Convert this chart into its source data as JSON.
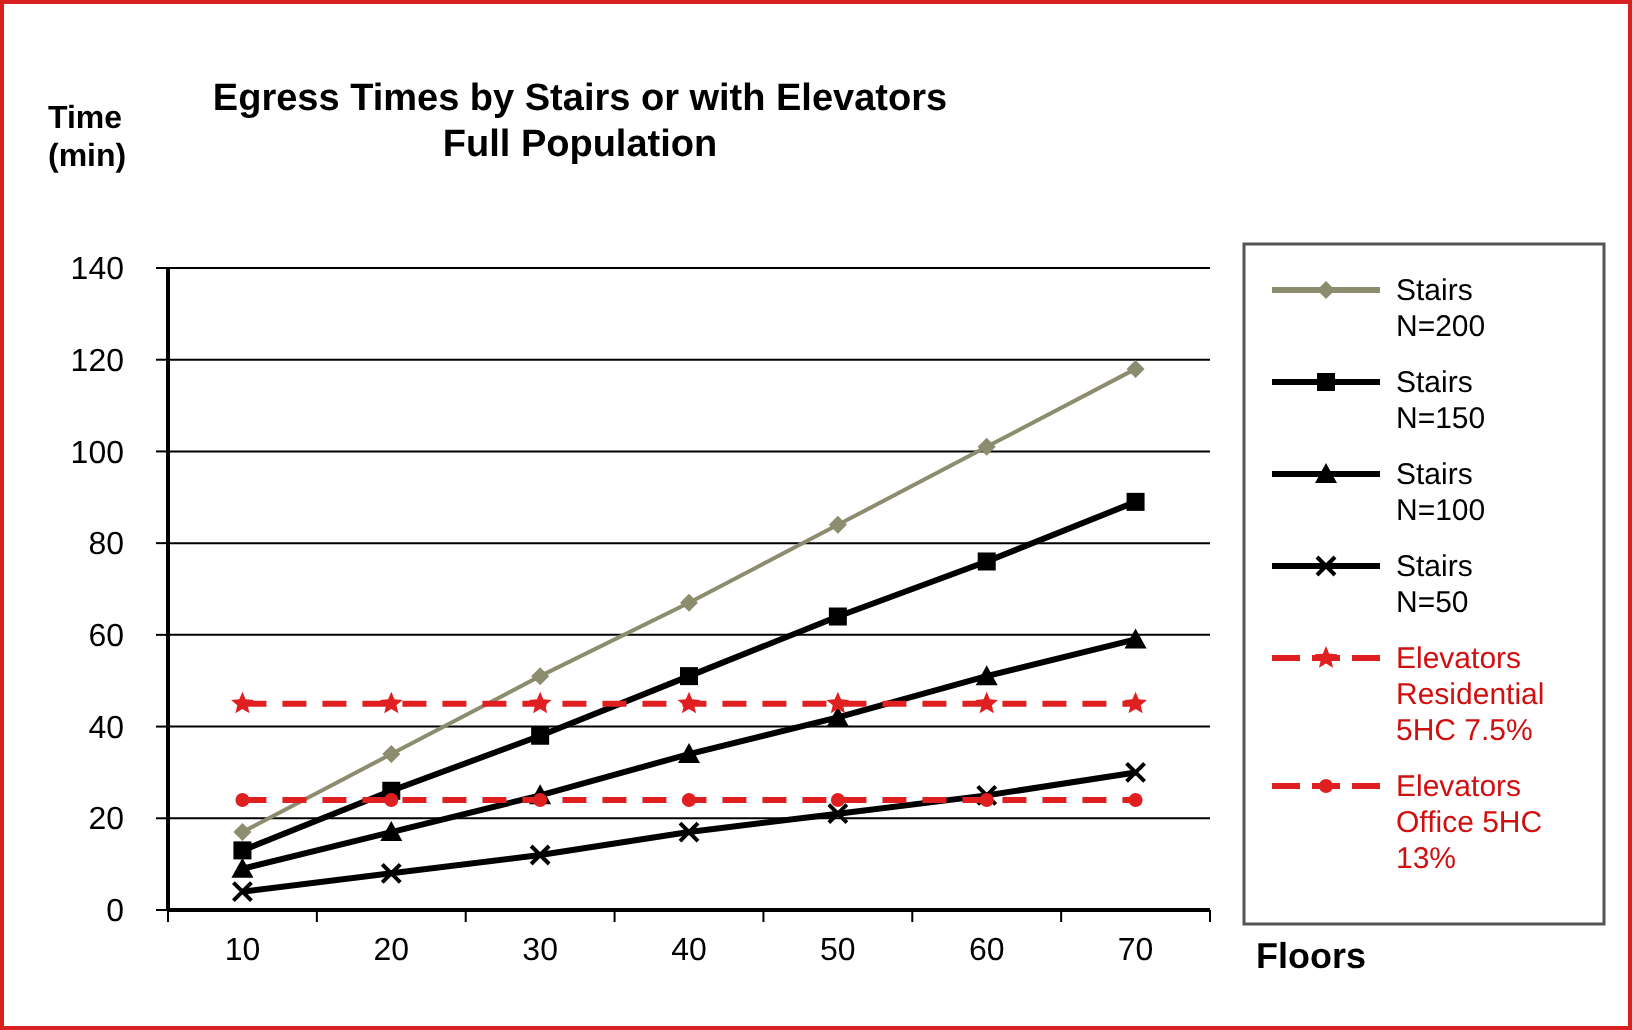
{
  "chart_data": {
    "type": "line",
    "title": "Egress Times by Stairs or with Elevators\nFull Population",
    "ylabel": "Time\n(min)",
    "xlabel": "Floors",
    "categories": [
      "10",
      "20",
      "30",
      "40",
      "50",
      "60",
      "70"
    ],
    "ylim": [
      0,
      140
    ],
    "yticks": [
      0,
      20,
      40,
      60,
      80,
      100,
      120,
      140
    ],
    "grid": "y",
    "legend": "right",
    "series": [
      {
        "name": "Stairs N=200",
        "color": "#8c8c6e",
        "marker": "diamond",
        "line_style": "solid",
        "values": [
          17,
          34,
          51,
          67,
          84,
          101,
          118
        ]
      },
      {
        "name": "Stairs N=150",
        "color": "#000000",
        "marker": "square",
        "line_style": "solid",
        "values": [
          13,
          26,
          38,
          51,
          64,
          76,
          89
        ]
      },
      {
        "name": "Stairs N=100",
        "color": "#000000",
        "marker": "triangle",
        "line_style": "solid",
        "values": [
          9,
          17,
          25,
          34,
          42,
          51,
          59
        ]
      },
      {
        "name": "Stairs N=50",
        "color": "#000000",
        "marker": "cross",
        "line_style": "solid",
        "values": [
          4,
          8,
          12,
          17,
          21,
          25,
          30
        ]
      },
      {
        "name": "Elevators Residential 5HC 7.5%",
        "color": "#e02020",
        "marker": "star",
        "line_style": "dashed",
        "values": [
          45,
          45,
          45,
          45,
          45,
          45,
          45
        ]
      },
      {
        "name": "Elevators Office 5HC 13%",
        "color": "#e02020",
        "marker": "circle",
        "line_style": "dashed",
        "values": [
          24,
          24,
          24,
          24,
          24,
          24,
          24
        ]
      }
    ]
  }
}
